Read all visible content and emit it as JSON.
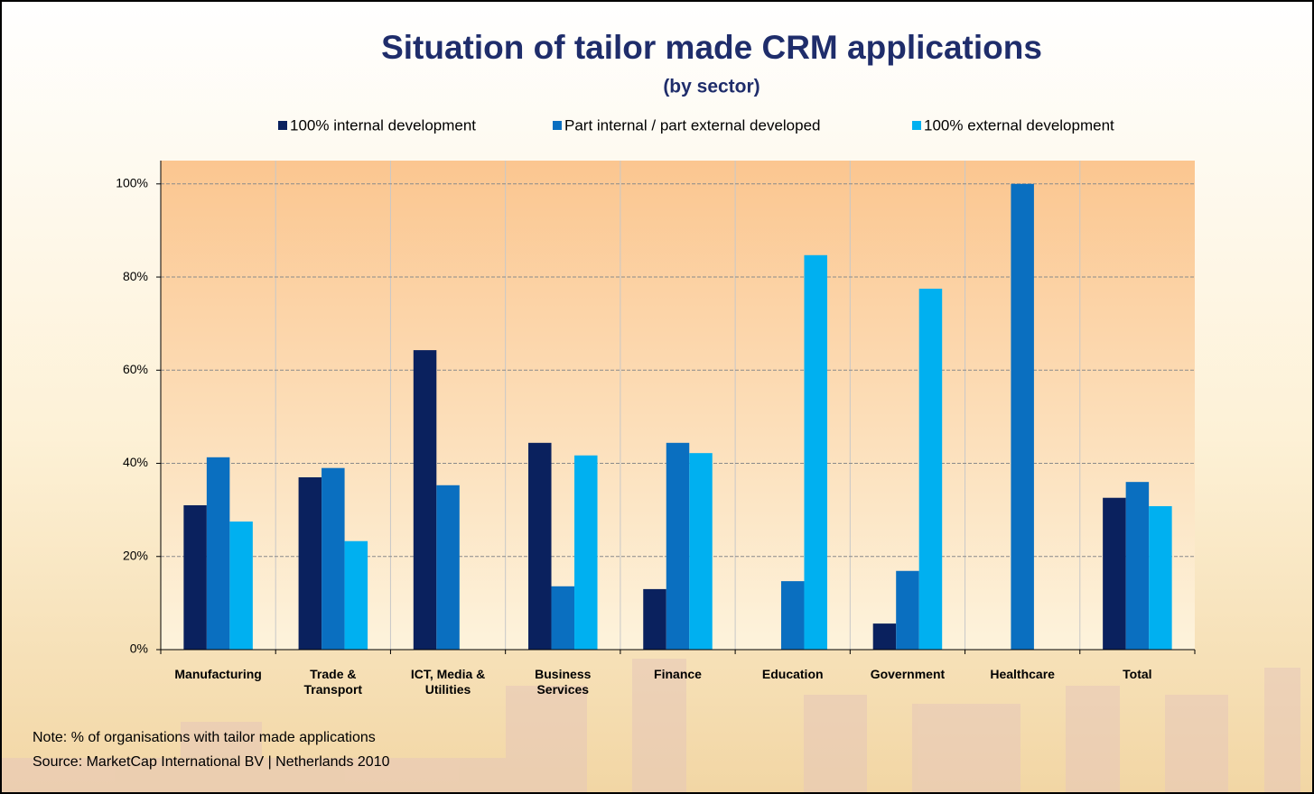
{
  "chart_data": {
    "type": "bar",
    "title": "Situation of tailor made CRM applications",
    "subtitle": "(by sector)",
    "categories": [
      "Manufacturing",
      "Trade &\nTransport",
      "ICT, Media &\nUtilities",
      "Business\nServices",
      "Finance",
      "Education",
      "Government",
      "Healthcare",
      "Total"
    ],
    "series": [
      {
        "name": "100% internal development",
        "color": "#0a215e",
        "values": [
          31,
          37,
          64.3,
          44.4,
          13,
          0,
          5.6,
          0,
          32.6
        ]
      },
      {
        "name": "Part internal / part external developed",
        "color": "#0a6fc0",
        "values": [
          41.3,
          39,
          35.3,
          13.6,
          44.4,
          14.7,
          16.9,
          100,
          36
        ]
      },
      {
        "name": "100% external development",
        "color": "#00b0f0",
        "values": [
          27.5,
          23.3,
          0,
          41.7,
          42.2,
          84.7,
          77.5,
          0,
          30.8
        ]
      }
    ],
    "ylim": [
      0,
      105
    ],
    "yticks": [
      {
        "value": 0,
        "label": "0%"
      },
      {
        "value": 20,
        "label": "20%"
      },
      {
        "value": 40,
        "label": "40%"
      },
      {
        "value": 60,
        "label": "60%"
      },
      {
        "value": 80,
        "label": "80%"
      },
      {
        "value": 100,
        "label": "100%"
      }
    ],
    "grid": true,
    "legend": "top",
    "notes": [
      "Note: % of organisations with tailor made applications",
      "Source: MarketCap International BV | Netherlands 2010"
    ]
  }
}
